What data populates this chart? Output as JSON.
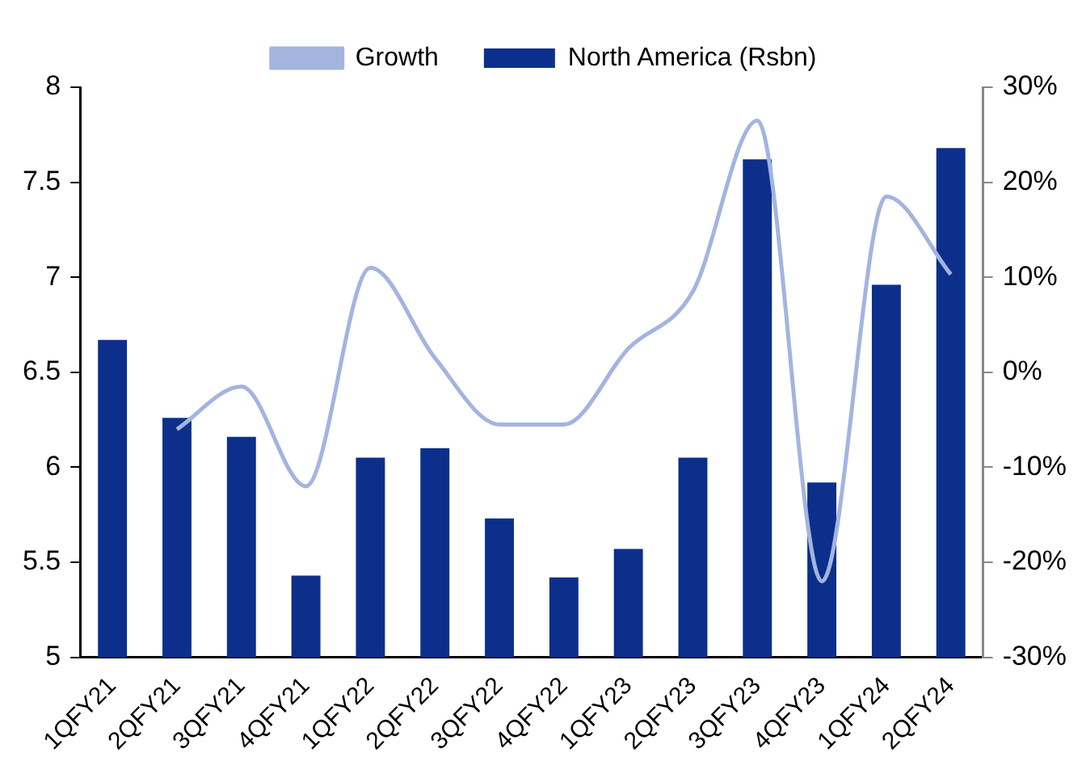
{
  "chart_data": {
    "type": "bar",
    "categories": [
      "1QFY21",
      "2QFY21",
      "3QFY21",
      "4QFY21",
      "1QFY22",
      "2QFY22",
      "3QFY22",
      "4QFY22",
      "1QFY23",
      "2QFY23",
      "3QFY23",
      "4QFY23",
      "1QFY24",
      "2QFY24"
    ],
    "series": [
      {
        "name": "North America (Rsbn)",
        "color": "#0c2f8c",
        "values": [
          6.67,
          6.26,
          6.16,
          5.43,
          6.05,
          6.1,
          5.73,
          5.42,
          5.57,
          6.05,
          7.62,
          5.92,
          6.96,
          7.68
        ]
      },
      {
        "name": "Growth",
        "type": "line",
        "axis": "y2",
        "color": "#a4b4e0",
        "values": [
          null,
          -6,
          -1.5,
          -12,
          11,
          1.5,
          -5.5,
          -5.5,
          2.5,
          8.5,
          26.5,
          -22,
          18.5,
          10.3
        ]
      }
    ],
    "ylim": [
      5,
      8
    ],
    "yticks": [
      5,
      5.5,
      6,
      6.5,
      7,
      7.5,
      8
    ],
    "y2lim": [
      -30,
      30
    ],
    "y2ticks": [
      {
        "value": -30,
        "label": "-30%"
      },
      {
        "value": -20,
        "label": "-20%"
      },
      {
        "value": -10,
        "label": "-10%"
      },
      {
        "value": 0,
        "label": "0%"
      },
      {
        "value": 10,
        "label": "10%"
      },
      {
        "value": 20,
        "label": "20%"
      },
      {
        "value": 30,
        "label": "30%"
      }
    ],
    "legend": "top",
    "grid": false,
    "marker": "none"
  }
}
